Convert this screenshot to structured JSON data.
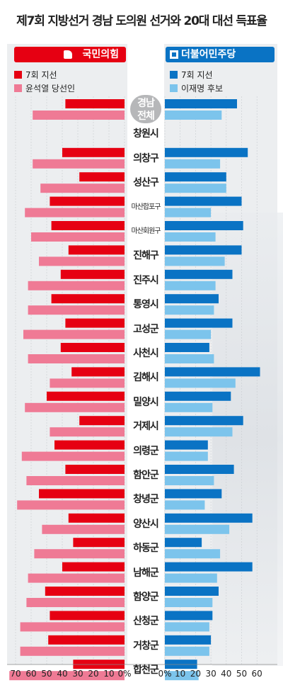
{
  "title": "제7회 지방선거 경남 도의원 선거와 20대 대선 득표율",
  "parties": {
    "left": "국민의힘",
    "right": "더불어민주당"
  },
  "legend": {
    "left_a": "7회 지선",
    "left_b": "윤석열 당선인",
    "right_a": "7회 지선",
    "right_b": "이재명 후보"
  },
  "colors": {
    "left_a": "#e60012",
    "left_b": "#ef7a95",
    "right_a": "#0a73c4",
    "right_b": "#7cc4ec"
  },
  "chart_data": {
    "type": "bar",
    "categories": [
      "경남 전체",
      "창원시",
      "의창구",
      "성산구",
      "마산합포구",
      "마산회원구",
      "진해구",
      "진주시",
      "통영시",
      "고성군",
      "사천시",
      "김해시",
      "밀양시",
      "거제시",
      "의령군",
      "함안군",
      "창녕군",
      "양산시",
      "하동군",
      "남해군",
      "함양군",
      "산청군",
      "거창군",
      "합천군"
    ],
    "left_ticks": [
      "70",
      "60",
      "50",
      "40",
      "30",
      "20",
      "10",
      "0%"
    ],
    "right_ticks": [
      "0%",
      "10",
      "20",
      "30",
      "40",
      "50",
      "60"
    ],
    "left_xlim": [
      0,
      70
    ],
    "right_xlim": [
      0,
      60
    ],
    "series": [
      {
        "name": "국민의힘 7회 지선",
        "side": "left",
        "values": [
          38,
          null,
          40,
          29,
          48,
          47,
          36,
          41,
          47,
          38,
          41,
          34,
          50,
          29,
          45,
          38,
          55,
          36,
          33,
          40,
          51,
          48,
          49,
          33
        ]
      },
      {
        "name": "윤석열 당선인",
        "side": "left",
        "values": [
          59,
          null,
          59,
          54,
          64,
          60,
          55,
          62,
          62,
          65,
          62,
          48,
          64,
          48,
          66,
          63,
          69,
          53,
          58,
          62,
          63,
          67,
          67,
          74
        ]
      },
      {
        "name": "더불어민주당 7회 지선",
        "side": "right",
        "values": [
          47,
          null,
          54,
          40,
          50,
          51,
          50,
          44,
          35,
          44,
          29,
          62,
          43,
          51,
          28,
          45,
          37,
          57,
          24,
          57,
          35,
          31,
          30,
          21
        ]
      },
      {
        "name": "이재명 후보",
        "side": "right",
        "values": [
          37,
          null,
          36,
          40,
          30,
          33,
          39,
          33,
          32,
          30,
          32,
          46,
          31,
          44,
          28,
          32,
          26,
          42,
          36,
          34,
          31,
          29,
          29,
          22
        ]
      }
    ]
  }
}
